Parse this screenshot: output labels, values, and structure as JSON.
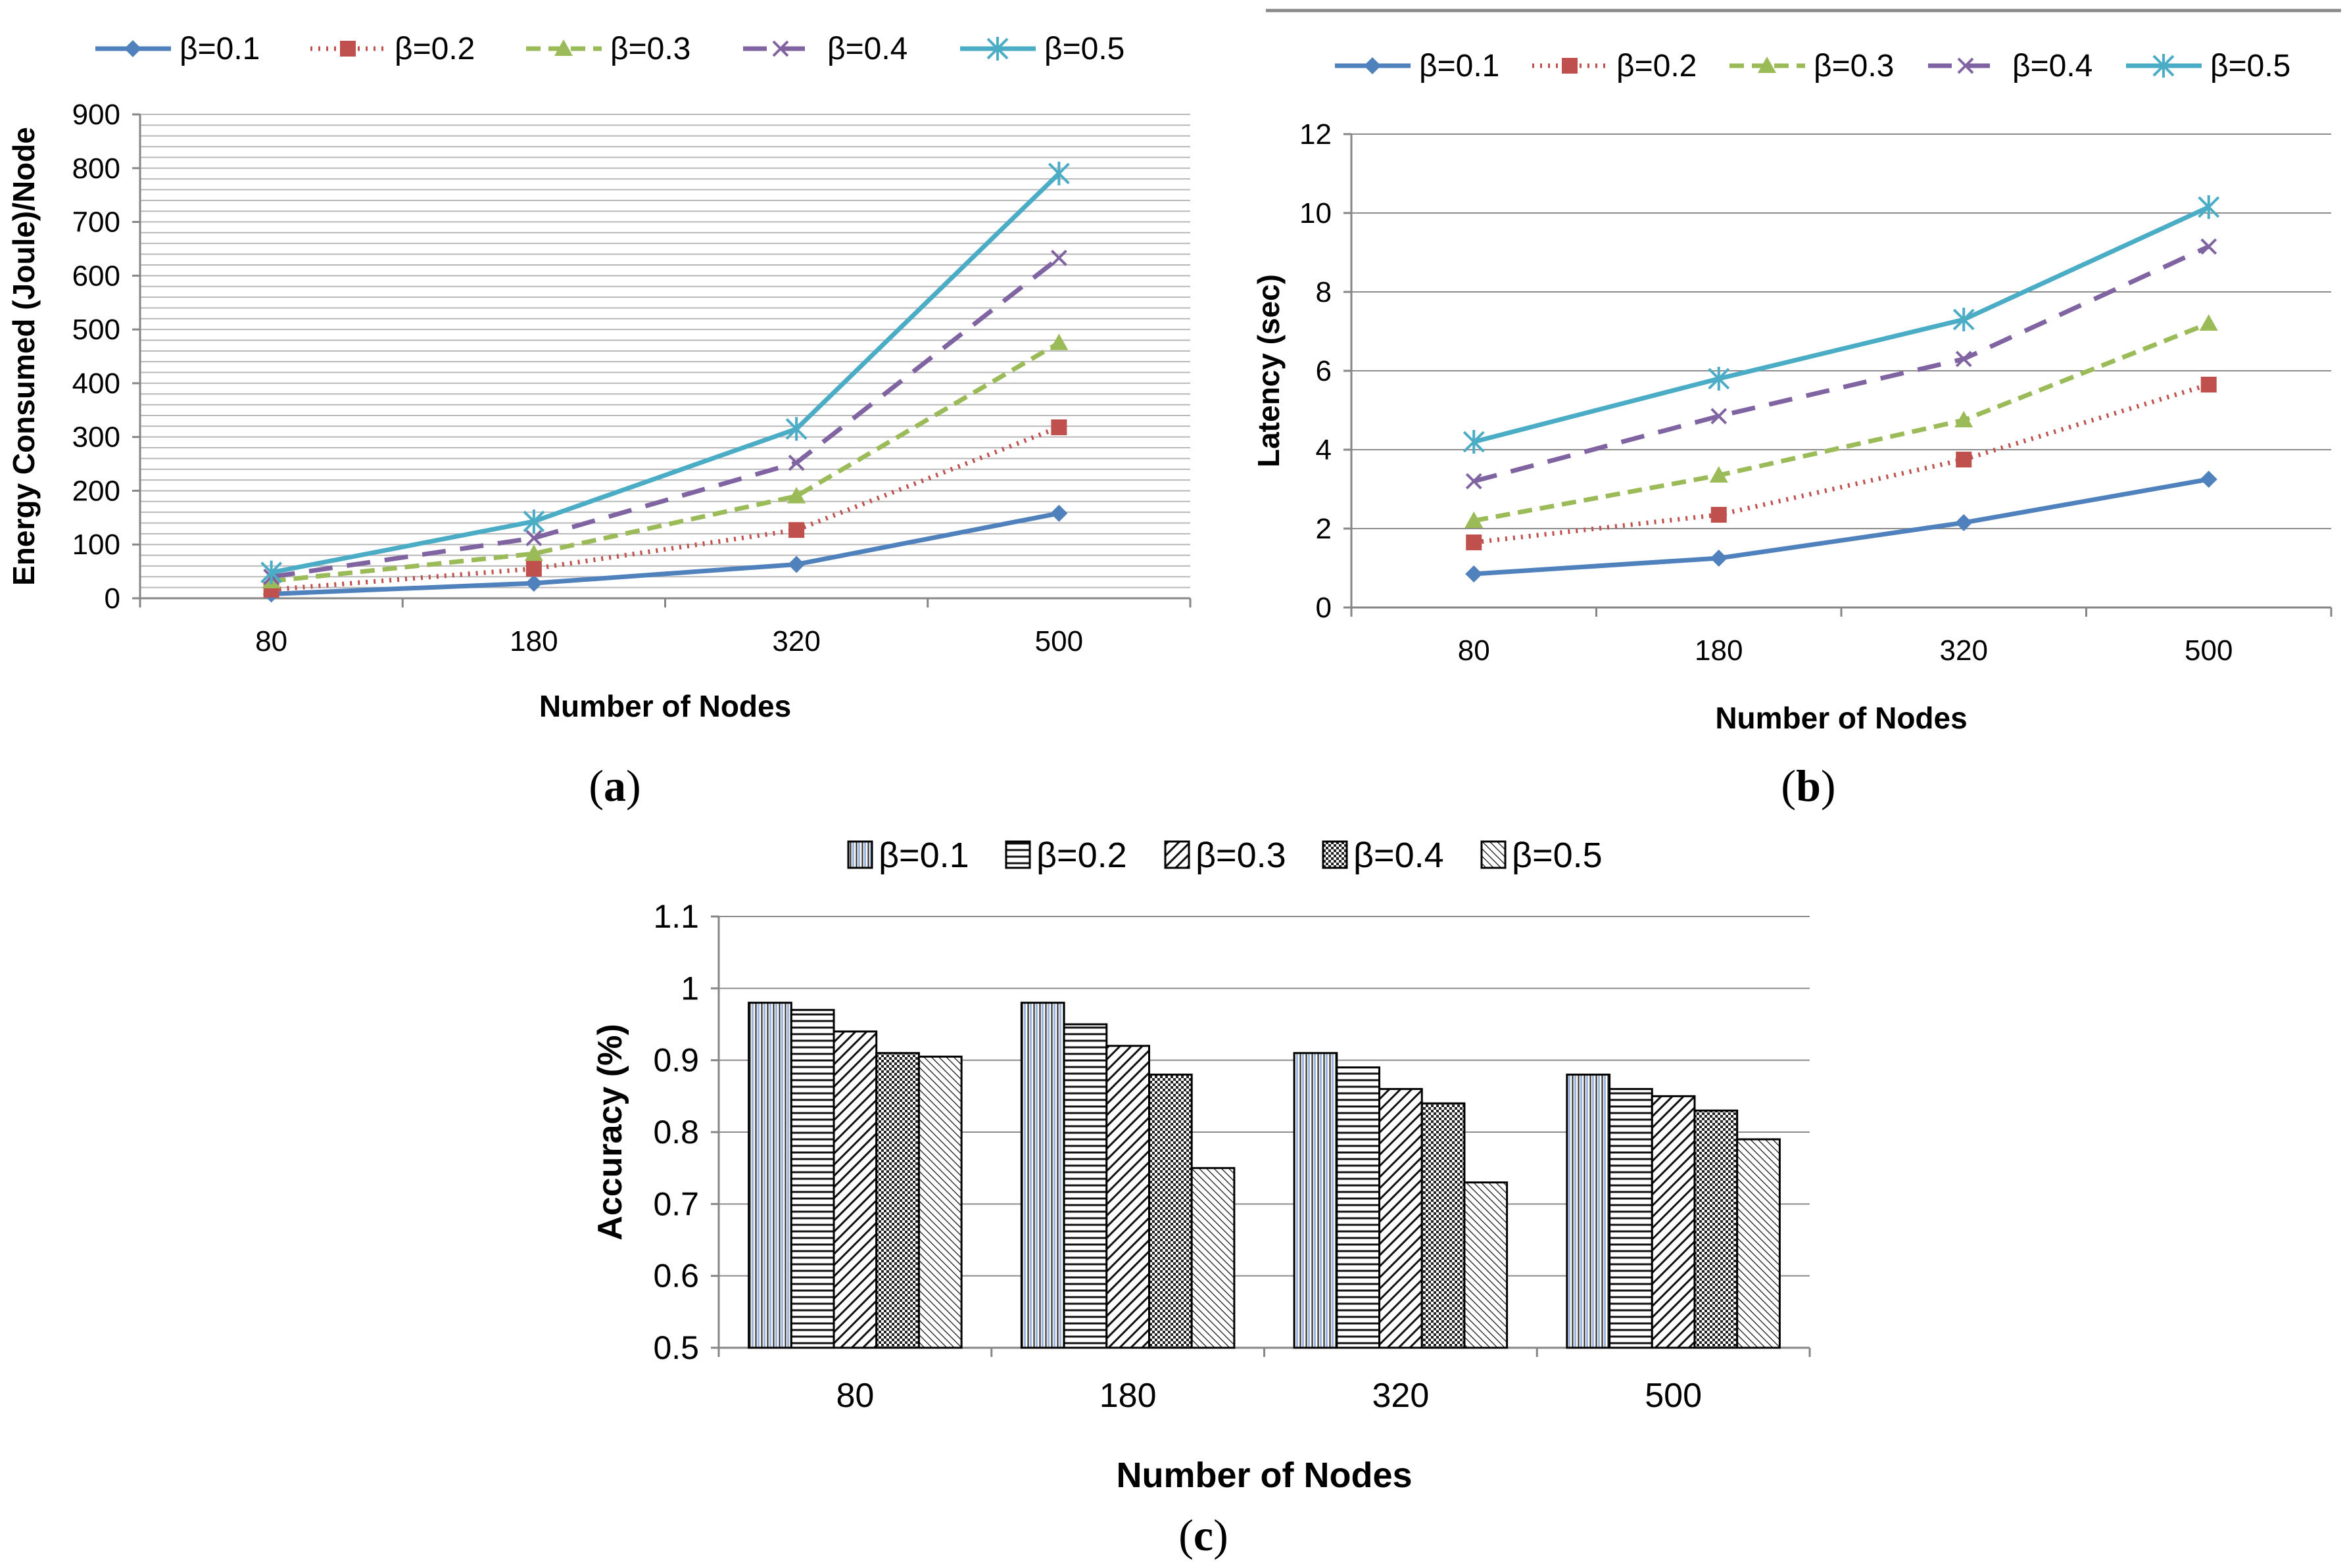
{
  "chart_data": [
    {
      "id": "a",
      "type": "line",
      "caption_letter": "a",
      "title": "",
      "xlabel": "Number of Nodes",
      "ylabel": "Energy Consumed (Joule)/Node",
      "categories": [
        "80",
        "180",
        "320",
        "500"
      ],
      "ylim": [
        0,
        900
      ],
      "yticks": [
        "0",
        "100",
        "200",
        "300",
        "400",
        "500",
        "600",
        "700",
        "800",
        "900"
      ],
      "grid": "dense horizontal",
      "legend_position": "top",
      "series": [
        {
          "name": "β=0.1",
          "color": "#4f81bd",
          "dash": "solid",
          "marker": "diamond",
          "values": [
            8,
            28,
            63,
            158
          ]
        },
        {
          "name": "β=0.2",
          "color": "#c0504d",
          "dash": "dotted",
          "marker": "square",
          "values": [
            16,
            55,
            127,
            318
          ]
        },
        {
          "name": "β=0.3",
          "color": "#9bbb59",
          "dash": "dashed",
          "marker": "triangle",
          "values": [
            32,
            83,
            190,
            475
          ]
        },
        {
          "name": "β=0.4",
          "color": "#8064a2",
          "dash": "longdash",
          "marker": "x",
          "values": [
            40,
            112,
            252,
            633
          ]
        },
        {
          "name": "β=0.5",
          "color": "#4bacc6",
          "dash": "solid",
          "marker": "star",
          "values": [
            48,
            143,
            315,
            790
          ]
        }
      ]
    },
    {
      "id": "b",
      "type": "line",
      "caption_letter": "b",
      "title": "",
      "xlabel": "Number of Nodes",
      "ylabel": "Latency (sec)",
      "categories": [
        "80",
        "180",
        "320",
        "500"
      ],
      "ylim": [
        0,
        12
      ],
      "yticks": [
        "0",
        "2",
        "4",
        "6",
        "8",
        "10",
        "12"
      ],
      "grid": "horizontal",
      "legend_position": "top",
      "series": [
        {
          "name": "β=0.1",
          "color": "#4f81bd",
          "dash": "solid",
          "marker": "diamond",
          "values": [
            0.85,
            1.25,
            2.15,
            3.25
          ]
        },
        {
          "name": "β=0.2",
          "color": "#c0504d",
          "dash": "dotted",
          "marker": "square",
          "values": [
            1.65,
            2.35,
            3.75,
            5.65
          ]
        },
        {
          "name": "β=0.3",
          "color": "#9bbb59",
          "dash": "dashed",
          "marker": "triangle",
          "values": [
            2.2,
            3.35,
            4.75,
            7.2
          ]
        },
        {
          "name": "β=0.4",
          "color": "#8064a2",
          "dash": "longdash",
          "marker": "x",
          "values": [
            3.2,
            4.85,
            6.3,
            9.15
          ]
        },
        {
          "name": "β=0.5",
          "color": "#4bacc6",
          "dash": "solid",
          "marker": "star",
          "values": [
            4.2,
            5.8,
            7.3,
            10.15
          ]
        }
      ]
    },
    {
      "id": "c",
      "type": "bar",
      "caption_letter": "c",
      "title": "",
      "xlabel": "Number of Nodes",
      "ylabel": "Accuracy (%)",
      "categories": [
        "80",
        "180",
        "320",
        "500"
      ],
      "ylim": [
        0.5,
        1.1
      ],
      "yticks": [
        "0.5",
        "0.6",
        "0.7",
        "0.8",
        "0.9",
        "1",
        "1.1"
      ],
      "grid": "horizontal",
      "legend_position": "top",
      "series": [
        {
          "name": "β=0.1",
          "pattern": "vertical-lines",
          "values": [
            0.98,
            0.98,
            0.91,
            0.88
          ]
        },
        {
          "name": "β=0.2",
          "pattern": "horizontal-lines",
          "values": [
            0.97,
            0.95,
            0.89,
            0.86
          ]
        },
        {
          "name": "β=0.3",
          "pattern": "wide-diagonal",
          "values": [
            0.94,
            0.92,
            0.86,
            0.85
          ]
        },
        {
          "name": "β=0.4",
          "pattern": "checker",
          "values": [
            0.91,
            0.88,
            0.84,
            0.83
          ]
        },
        {
          "name": "β=0.5",
          "pattern": "narrow-diagonal",
          "values": [
            0.905,
            0.75,
            0.73,
            0.79
          ]
        }
      ]
    }
  ]
}
